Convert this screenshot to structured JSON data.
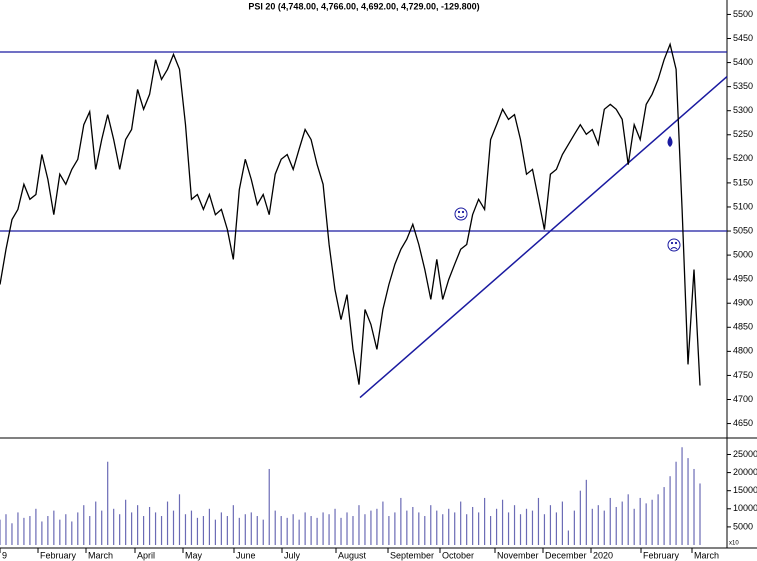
{
  "chart_data": [
    {
      "type": "line",
      "title": "PSI 20 (4,748.00, 4,766.00, 4,692.00, 4,729.00, -129.800)",
      "months": [
        "9",
        "February",
        "March",
        "April",
        "May",
        "June",
        "July",
        "August",
        "September",
        "October",
        "November",
        "December",
        "2020",
        "February",
        "March"
      ],
      "ylim": [
        4620,
        5530
      ],
      "yticks": [
        4650,
        4700,
        4750,
        4800,
        4850,
        4900,
        4950,
        5000,
        5050,
        5100,
        5150,
        5200,
        5250,
        5300,
        5350,
        5400,
        5450,
        5500
      ],
      "color": "#000000",
      "levels": [
        5422,
        5050
      ],
      "level_color": "#1a1aa0",
      "trendline": [
        4704,
        5371
      ],
      "values": [
        4939,
        5012,
        5074,
        5095,
        5147,
        5116,
        5126,
        5209,
        5157,
        5084,
        5168,
        5147,
        5178,
        5199,
        5271,
        5298,
        5178,
        5240,
        5292,
        5240,
        5178,
        5240,
        5261,
        5344,
        5303,
        5334,
        5406,
        5365,
        5386,
        5417,
        5386,
        5271,
        5116,
        5126,
        5095,
        5126,
        5084,
        5095,
        5053,
        4991,
        5136,
        5199,
        5157,
        5105,
        5126,
        5084,
        5168,
        5199,
        5209,
        5178,
        5220,
        5261,
        5240,
        5188,
        5147,
        5022,
        4928,
        4866,
        4918,
        4804,
        4731,
        4887,
        4856,
        4804,
        4887,
        4939,
        4981,
        5012,
        5033,
        5064,
        5022,
        4970,
        4908,
        4991,
        4908,
        4949,
        4981,
        5012,
        5022,
        5084,
        5116,
        5095,
        5240,
        5271,
        5303,
        5282,
        5292,
        5240,
        5168,
        5178,
        5116,
        5053,
        5168,
        5178,
        5209,
        5230,
        5251,
        5271,
        5251,
        5261,
        5230,
        5303,
        5313,
        5303,
        5282,
        5188,
        5271,
        5240,
        5313,
        5334,
        5365,
        5406,
        5438,
        5386,
        5095,
        4773,
        4970,
        4729
      ]
    },
    {
      "type": "bar",
      "volume_unit_label": "x10",
      "ylim": [
        0,
        29000
      ],
      "yticks": [
        5000,
        10000,
        15000,
        20000,
        25000
      ],
      "color": "#6b6bb5",
      "values": [
        7000,
        8500,
        6000,
        9000,
        7500,
        8000,
        10000,
        6500,
        8000,
        9500,
        7000,
        8500,
        6500,
        9000,
        11000,
        8000,
        12000,
        9500,
        23000,
        10000,
        8500,
        12500,
        9000,
        11000,
        8000,
        10500,
        9000,
        8000,
        12000,
        9500,
        14000,
        8500,
        9500,
        7500,
        8000,
        10000,
        7000,
        9000,
        8000,
        11000,
        7500,
        8500,
        9000,
        8000,
        7000,
        21000,
        9500,
        8000,
        7500,
        8500,
        7000,
        9000,
        8000,
        7500,
        9000,
        8500,
        10000,
        7500,
        9000,
        8000,
        11000,
        8500,
        9500,
        10000,
        12000,
        8000,
        9000,
        13000,
        9500,
        10500,
        9000,
        8000,
        11000,
        9500,
        8500,
        10000,
        9000,
        12000,
        8500,
        10500,
        9000,
        13000,
        8000,
        10000,
        12500,
        9000,
        11000,
        8500,
        10000,
        9500,
        13000,
        8500,
        11000,
        9000,
        12000,
        4000,
        9500,
        15000,
        18000,
        10000,
        11000,
        9500,
        13000,
        10500,
        12000,
        14000,
        10000,
        13000,
        11500,
        12500,
        14000,
        16000,
        19000,
        23000,
        27000,
        24000,
        21000,
        17000
      ]
    }
  ]
}
